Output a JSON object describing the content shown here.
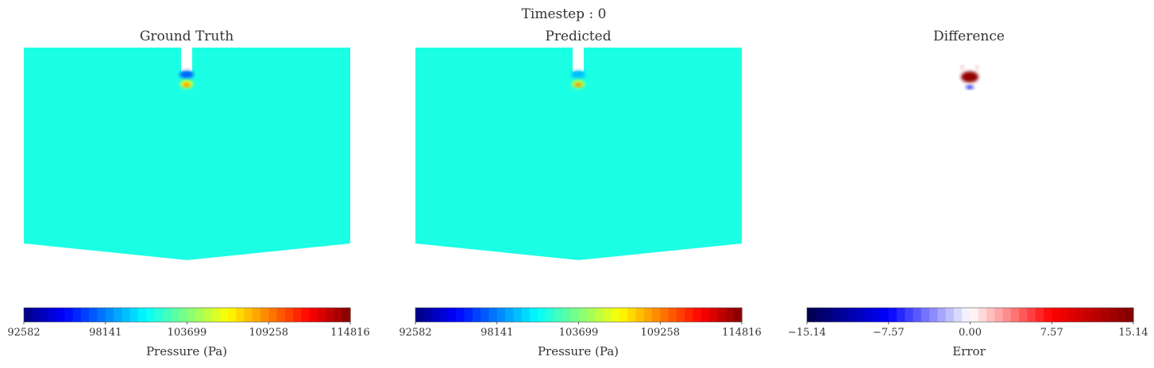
{
  "figure": {
    "suptitle": "Timestep : 0"
  },
  "chart_data": [
    {
      "type": "heatmap",
      "title": "Ground Truth",
      "field": "pressure",
      "colormap": "jet",
      "vmin": 92582,
      "vmax": 114816,
      "background_value": 101500,
      "hotspot": {
        "low_value": 97500,
        "high_value": 106300
      },
      "colorbar": {
        "label": "Pressure (Pa)",
        "ticks": [
          92582,
          98141,
          103699,
          109258,
          114816
        ],
        "tick_labels": [
          "92582",
          "98141",
          "103699",
          "109258",
          "114816"
        ],
        "segments": 40
      }
    },
    {
      "type": "heatmap",
      "title": "Predicted",
      "field": "pressure",
      "colormap": "jet",
      "vmin": 92582,
      "vmax": 114816,
      "background_value": 101500,
      "hotspot": {
        "low_value": 99500,
        "high_value": 105500
      },
      "colorbar": {
        "label": "Pressure (Pa)",
        "ticks": [
          92582,
          98141,
          103699,
          109258,
          114816
        ],
        "tick_labels": [
          "92582",
          "98141",
          "103699",
          "109258",
          "114816"
        ],
        "segments": 40
      }
    },
    {
      "type": "heatmap",
      "title": "Difference",
      "field": "error",
      "colormap": "seismic",
      "vmin": -15.14,
      "vmax": 15.14,
      "background_value": 0,
      "hotspot": {
        "high_value": 14.0,
        "low_value": -8.0
      },
      "colorbar": {
        "label": "Error",
        "ticks": [
          -15.14,
          -7.57,
          0.0,
          7.57,
          15.14
        ],
        "tick_labels": [
          "−15.14",
          "−7.57",
          "0.00",
          "7.57",
          "15.14"
        ],
        "segments": 40
      }
    }
  ]
}
